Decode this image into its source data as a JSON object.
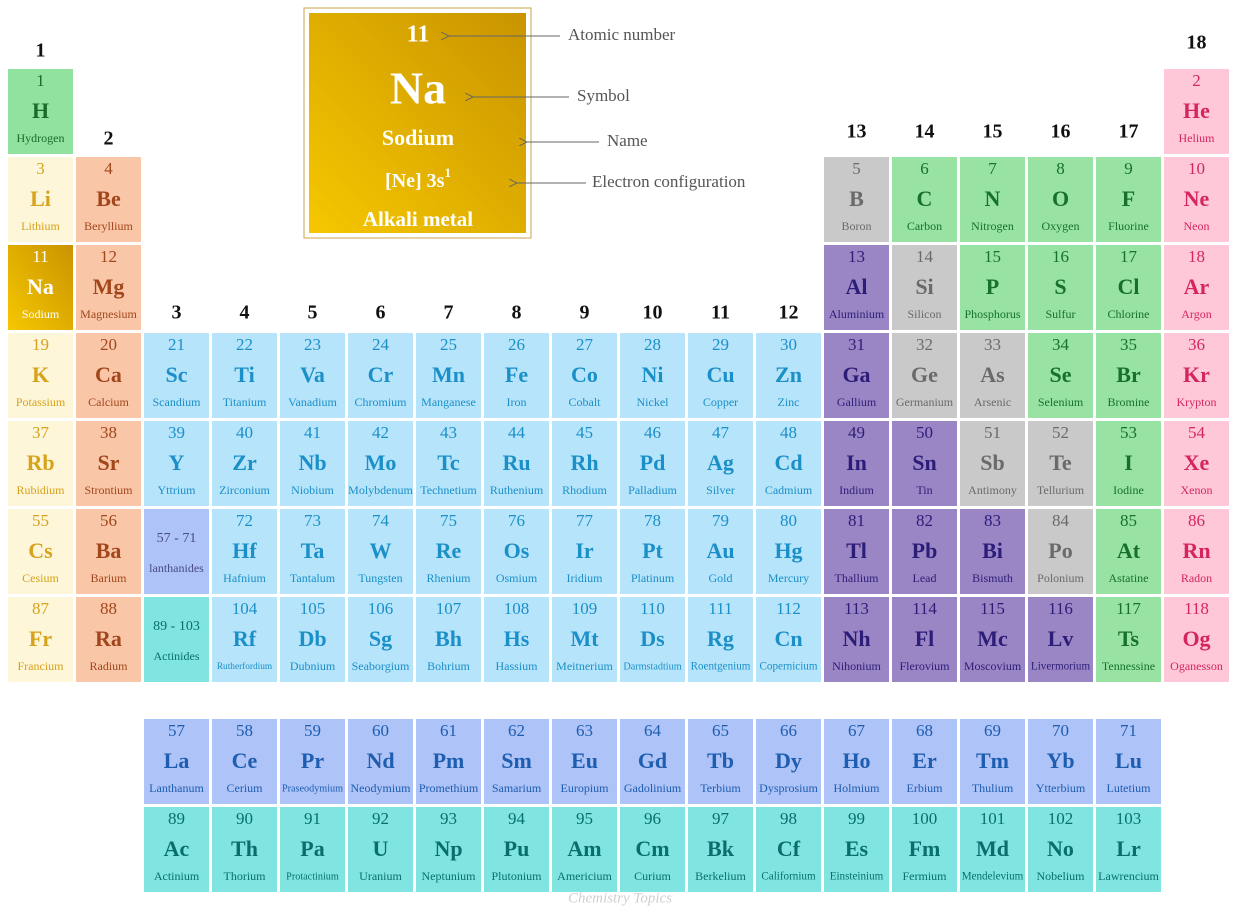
{
  "group_numbers": [
    1,
    2,
    3,
    4,
    5,
    6,
    7,
    8,
    9,
    10,
    11,
    12,
    13,
    14,
    15,
    16,
    17,
    18
  ],
  "legend": {
    "number": 11,
    "symbol": "Na",
    "name": "Sodium",
    "configuration": "[Ne] 3s",
    "superscript": 1,
    "category": "Alkali metal",
    "labels": [
      "Atomic number",
      "Symbol",
      "Name",
      "Electron configuration"
    ]
  },
  "placeholders": [
    {
      "range": "57 - 71",
      "name": "lanthanides"
    },
    {
      "range": "89 - 103",
      "name": "Actinides"
    }
  ],
  "elements": [
    {
      "number": 1,
      "symbol": "H",
      "name": "Hydrogen"
    },
    {
      "number": 2,
      "symbol": "He",
      "name": "Helium"
    },
    {
      "number": 3,
      "symbol": "Li",
      "name": "Lithium"
    },
    {
      "number": 4,
      "symbol": "Be",
      "name": "Beryllium"
    },
    {
      "number": 5,
      "symbol": "B",
      "name": "Boron"
    },
    {
      "number": 6,
      "symbol": "C",
      "name": "Carbon"
    },
    {
      "number": 7,
      "symbol": "N",
      "name": "Nitrogen"
    },
    {
      "number": 8,
      "symbol": "O",
      "name": "Oxygen"
    },
    {
      "number": 9,
      "symbol": "F",
      "name": "Fluorine"
    },
    {
      "number": 10,
      "symbol": "Ne",
      "name": "Neon"
    },
    {
      "number": 11,
      "symbol": "Na",
      "name": "Sodium"
    },
    {
      "number": 12,
      "symbol": "Mg",
      "name": "Magnesium"
    },
    {
      "number": 13,
      "symbol": "Al",
      "name": "Aluminium"
    },
    {
      "number": 14,
      "symbol": "Si",
      "name": "Silicon"
    },
    {
      "number": 15,
      "symbol": "P",
      "name": "Phosphorus"
    },
    {
      "number": 16,
      "symbol": "S",
      "name": "Sulfur"
    },
    {
      "number": 17,
      "symbol": "Cl",
      "name": "Chlorine"
    },
    {
      "number": 18,
      "symbol": "Ar",
      "name": "Argon"
    },
    {
      "number": 19,
      "symbol": "K",
      "name": "Potassium"
    },
    {
      "number": 20,
      "symbol": "Ca",
      "name": "Calcium"
    },
    {
      "number": 21,
      "symbol": "Sc",
      "name": "Scandium"
    },
    {
      "number": 22,
      "symbol": "Ti",
      "name": "Titanium"
    },
    {
      "number": 23,
      "symbol": "Va",
      "name": "Vanadium"
    },
    {
      "number": 24,
      "symbol": "Cr",
      "name": "Chromium"
    },
    {
      "number": 25,
      "symbol": "Mn",
      "name": "Manganese"
    },
    {
      "number": 26,
      "symbol": "Fe",
      "name": "Iron"
    },
    {
      "number": 27,
      "symbol": "Co",
      "name": "Cobalt"
    },
    {
      "number": 28,
      "symbol": "Ni",
      "name": "Nickel"
    },
    {
      "number": 29,
      "symbol": "Cu",
      "name": "Copper"
    },
    {
      "number": 30,
      "symbol": "Zn",
      "name": "Zinc"
    },
    {
      "number": 31,
      "symbol": "Ga",
      "name": "Gallium"
    },
    {
      "number": 32,
      "symbol": "Ge",
      "name": "Germanium"
    },
    {
      "number": 33,
      "symbol": "As",
      "name": "Arsenic"
    },
    {
      "number": 34,
      "symbol": "Se",
      "name": "Selenium"
    },
    {
      "number": 35,
      "symbol": "Br",
      "name": "Bromine"
    },
    {
      "number": 36,
      "symbol": "Kr",
      "name": "Krypton"
    },
    {
      "number": 37,
      "symbol": "Rb",
      "name": "Rubidium"
    },
    {
      "number": 38,
      "symbol": "Sr",
      "name": "Strontium"
    },
    {
      "number": 39,
      "symbol": "Y",
      "name": "Yttrium"
    },
    {
      "number": 40,
      "symbol": "Zr",
      "name": "Zirconium"
    },
    {
      "number": 41,
      "symbol": "Nb",
      "name": "Niobium"
    },
    {
      "number": 42,
      "symbol": "Mo",
      "name": "Molybdenum"
    },
    {
      "number": 43,
      "symbol": "Tc",
      "name": "Technetium"
    },
    {
      "number": 44,
      "symbol": "Ru",
      "name": "Ruthenium"
    },
    {
      "number": 45,
      "symbol": "Rh",
      "name": "Rhodium"
    },
    {
      "number": 46,
      "symbol": "Pd",
      "name": "Palladium"
    },
    {
      "number": 47,
      "symbol": "Ag",
      "name": "Silver"
    },
    {
      "number": 48,
      "symbol": "Cd",
      "name": "Cadmium"
    },
    {
      "number": 49,
      "symbol": "In",
      "name": "Indium"
    },
    {
      "number": 50,
      "symbol": "Sn",
      "name": "Tin"
    },
    {
      "number": 51,
      "symbol": "Sb",
      "name": "Antimony"
    },
    {
      "number": 52,
      "symbol": "Te",
      "name": "Tellurium"
    },
    {
      "number": 53,
      "symbol": "I",
      "name": "Iodine"
    },
    {
      "number": 54,
      "symbol": "Xe",
      "name": "Xenon"
    },
    {
      "number": 55,
      "symbol": "Cs",
      "name": "Cesium"
    },
    {
      "number": 56,
      "symbol": "Ba",
      "name": "Barium"
    },
    {
      "number": 57,
      "symbol": "La",
      "name": "Lanthanum"
    },
    {
      "number": 58,
      "symbol": "Ce",
      "name": "Cerium"
    },
    {
      "number": 59,
      "symbol": "Pr",
      "name": "Praseodymium"
    },
    {
      "number": 60,
      "symbol": "Nd",
      "name": "Neodymium"
    },
    {
      "number": 61,
      "symbol": "Pm",
      "name": "Promethium"
    },
    {
      "number": 62,
      "symbol": "Sm",
      "name": "Samarium"
    },
    {
      "number": 63,
      "symbol": "Eu",
      "name": "Europium"
    },
    {
      "number": 64,
      "symbol": "Gd",
      "name": "Gadolinium"
    },
    {
      "number": 65,
      "symbol": "Tb",
      "name": "Terbium"
    },
    {
      "number": 66,
      "symbol": "Dy",
      "name": "Dysprosium"
    },
    {
      "number": 67,
      "symbol": "Ho",
      "name": "Holmium"
    },
    {
      "number": 68,
      "symbol": "Er",
      "name": "Erbium"
    },
    {
      "number": 69,
      "symbol": "Tm",
      "name": "Thulium"
    },
    {
      "number": 70,
      "symbol": "Yb",
      "name": "Ytterbium"
    },
    {
      "number": 71,
      "symbol": "Lu",
      "name": "Lutetium"
    },
    {
      "number": 72,
      "symbol": "Hf",
      "name": "Hafnium"
    },
    {
      "number": 73,
      "symbol": "Ta",
      "name": "Tantalum"
    },
    {
      "number": 74,
      "symbol": "W",
      "name": "Tungsten"
    },
    {
      "number": 75,
      "symbol": "Re",
      "name": "Rhenium"
    },
    {
      "number": 76,
      "symbol": "Os",
      "name": "Osmium"
    },
    {
      "number": 77,
      "symbol": "Ir",
      "name": "Iridium"
    },
    {
      "number": 78,
      "symbol": "Pt",
      "name": "Platinum"
    },
    {
      "number": 79,
      "symbol": "Au",
      "name": "Gold"
    },
    {
      "number": 80,
      "symbol": "Hg",
      "name": "Mercury"
    },
    {
      "number": 81,
      "symbol": "Tl",
      "name": "Thallium"
    },
    {
      "number": 82,
      "symbol": "Pb",
      "name": "Lead"
    },
    {
      "number": 83,
      "symbol": "Bi",
      "name": "Bismuth"
    },
    {
      "number": 84,
      "symbol": "Po",
      "name": "Polonium"
    },
    {
      "number": 85,
      "symbol": "At",
      "name": "Astatine"
    },
    {
      "number": 86,
      "symbol": "Rn",
      "name": "Radon"
    },
    {
      "number": 87,
      "symbol": "Fr",
      "name": "Francium"
    },
    {
      "number": 88,
      "symbol": "Ra",
      "name": "Radium"
    },
    {
      "number": 89,
      "symbol": "Ac",
      "name": "Actinium"
    },
    {
      "number": 90,
      "symbol": "Th",
      "name": "Thorium"
    },
    {
      "number": 91,
      "symbol": "Pa",
      "name": "Protactinium"
    },
    {
      "number": 92,
      "symbol": "U",
      "name": "Uranium"
    },
    {
      "number": 93,
      "symbol": "Np",
      "name": "Neptunium"
    },
    {
      "number": 94,
      "symbol": "Pu",
      "name": "Plutonium"
    },
    {
      "number": 95,
      "symbol": "Am",
      "name": "Americium"
    },
    {
      "number": 96,
      "symbol": "Cm",
      "name": "Curium"
    },
    {
      "number": 97,
      "symbol": "Bk",
      "name": "Berkelium"
    },
    {
      "number": 98,
      "symbol": "Cf",
      "name": "Californium"
    },
    {
      "number": 99,
      "symbol": "Es",
      "name": "Einsteinium"
    },
    {
      "number": 100,
      "symbol": "Fm",
      "name": "Fermium"
    },
    {
      "number": 101,
      "symbol": "Md",
      "name": "Mendelevium"
    },
    {
      "number": 102,
      "symbol": "No",
      "name": "Nobelium"
    },
    {
      "number": 103,
      "symbol": "Lr",
      "name": "Lawrencium"
    },
    {
      "number": 104,
      "symbol": "Rf",
      "name": "Rutherfordium"
    },
    {
      "number": 105,
      "symbol": "Db",
      "name": "Dubnium"
    },
    {
      "number": 106,
      "symbol": "Sg",
      "name": "Seaborgium"
    },
    {
      "number": 107,
      "symbol": "Bh",
      "name": "Bohrium"
    },
    {
      "number": 108,
      "symbol": "Hs",
      "name": "Hassium"
    },
    {
      "number": 109,
      "symbol": "Mt",
      "name": "Meitnerium"
    },
    {
      "number": 110,
      "symbol": "Ds",
      "name": "Darmstadtium"
    },
    {
      "number": 111,
      "symbol": "Rg",
      "name": "Roentgenium"
    },
    {
      "number": 112,
      "symbol": "Cn",
      "name": "Copernicium"
    },
    {
      "number": 113,
      "symbol": "Nh",
      "name": "Nihonium"
    },
    {
      "number": 114,
      "symbol": "Fl",
      "name": "Flerovium"
    },
    {
      "number": 115,
      "symbol": "Mc",
      "name": "Moscovium"
    },
    {
      "number": 116,
      "symbol": "Lv",
      "name": "Livermorium"
    },
    {
      "number": 117,
      "symbol": "Ts",
      "name": "Tennessine"
    },
    {
      "number": 118,
      "symbol": "Og",
      "name": "Oganesson"
    }
  ],
  "watermark": "Chemistry Topics"
}
